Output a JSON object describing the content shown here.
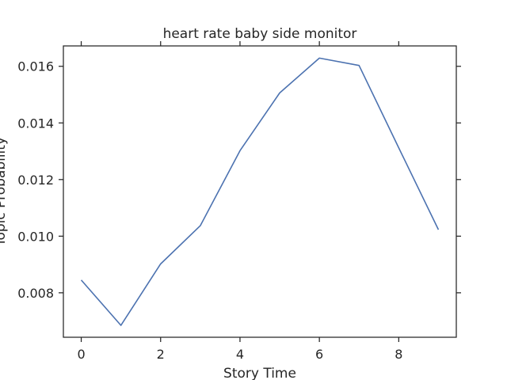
{
  "chart_data": {
    "type": "line",
    "title": "heart rate baby side monitor",
    "xlabel": "Story Time",
    "ylabel": "Topic Probability",
    "x": [
      0,
      1,
      2,
      3,
      4,
      5,
      6,
      7,
      8,
      9
    ],
    "series": [
      {
        "values": [
          0.00845,
          0.00685,
          0.00902,
          0.01037,
          0.01302,
          0.01506,
          0.01629,
          0.01603,
          0.01312,
          0.01023
        ]
      }
    ],
    "xlim": [
      -0.45,
      9.45
    ],
    "ylim": [
      0.00643,
      0.01672
    ],
    "xticks": [
      0,
      2,
      4,
      6,
      8
    ],
    "xtick_labels": [
      "0",
      "2",
      "4",
      "6",
      "8"
    ],
    "yticks": [
      0.008,
      0.01,
      0.012,
      0.014,
      0.016
    ],
    "ytick_labels": [
      "0.008",
      "0.010",
      "0.012",
      "0.014",
      "0.016"
    ],
    "grid": false,
    "legend": "none",
    "colors": {
      "line": "#4c72b0",
      "axes": "#262626",
      "text": "#262626"
    }
  }
}
